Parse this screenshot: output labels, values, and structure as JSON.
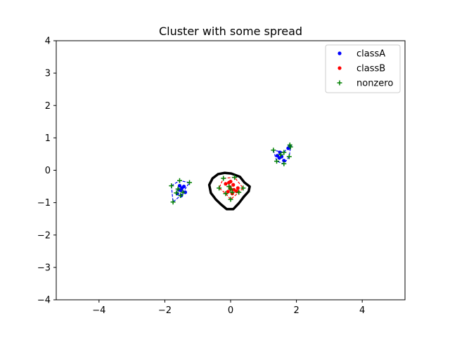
{
  "chart_data": {
    "type": "scatter",
    "title": "Cluster with some spread",
    "xlabel": "",
    "ylabel": "",
    "xlim": [
      -5.3,
      5.3
    ],
    "ylim": [
      -4,
      4
    ],
    "xticks": [
      -4,
      -2,
      0,
      2,
      4
    ],
    "yticks": [
      -4,
      -3,
      -2,
      -1,
      0,
      1,
      2,
      3,
      4
    ],
    "grid": false,
    "legend_position": "top-right",
    "series": [
      {
        "name": "classA",
        "color": "#0000ff",
        "marker": "dot",
        "points": [
          [
            -1.55,
            -0.48
          ],
          [
            -1.48,
            -0.55
          ],
          [
            -1.52,
            -0.62
          ],
          [
            -1.42,
            -0.5
          ],
          [
            -1.62,
            -0.72
          ],
          [
            -1.5,
            -0.78
          ],
          [
            -1.38,
            -0.68
          ],
          [
            -1.58,
            -0.6
          ],
          [
            1.42,
            0.45
          ],
          [
            1.55,
            0.42
          ],
          [
            1.5,
            0.55
          ],
          [
            1.75,
            0.68
          ],
          [
            1.8,
            0.75
          ],
          [
            1.78,
            0.7
          ],
          [
            1.62,
            0.3
          ],
          [
            1.48,
            0.38
          ]
        ]
      },
      {
        "name": "classB",
        "color": "#ff0000",
        "marker": "dot",
        "points": [
          [
            -0.15,
            -0.42
          ],
          [
            -0.05,
            -0.38
          ],
          [
            0.0,
            -0.35
          ],
          [
            0.08,
            -0.45
          ],
          [
            -0.02,
            -0.52
          ],
          [
            0.1,
            -0.6
          ],
          [
            0.18,
            -0.65
          ],
          [
            0.05,
            -0.72
          ],
          [
            -0.08,
            -0.66
          ],
          [
            0.0,
            -0.58
          ],
          [
            0.22,
            -0.55
          ]
        ]
      },
      {
        "name": "nonzero",
        "color": "#008000",
        "marker": "plus",
        "points": [
          [
            -1.8,
            -0.48
          ],
          [
            -1.55,
            -0.32
          ],
          [
            -1.25,
            -0.38
          ],
          [
            -1.45,
            -0.68
          ],
          [
            -1.52,
            -0.78
          ],
          [
            -1.75,
            -0.98
          ],
          [
            -1.6,
            -0.58
          ],
          [
            -1.65,
            -0.7
          ],
          [
            1.3,
            0.62
          ],
          [
            1.4,
            0.28
          ],
          [
            1.62,
            0.2
          ],
          [
            1.78,
            0.42
          ],
          [
            1.82,
            0.72
          ],
          [
            1.8,
            0.78
          ],
          [
            1.62,
            0.55
          ],
          [
            1.52,
            0.48
          ],
          [
            -0.22,
            -0.25
          ],
          [
            0.12,
            -0.22
          ],
          [
            -0.35,
            -0.55
          ],
          [
            -0.15,
            -0.72
          ],
          [
            0.0,
            -0.58
          ],
          [
            0.05,
            -0.68
          ],
          [
            0.38,
            -0.55
          ],
          [
            0.0,
            -0.9
          ],
          [
            0.25,
            -0.68
          ],
          [
            -0.05,
            -0.5
          ]
        ]
      }
    ],
    "hulls": [
      {
        "color": "#0000ff",
        "points": [
          [
            -1.8,
            -0.48
          ],
          [
            -1.55,
            -0.32
          ],
          [
            -1.25,
            -0.38
          ],
          [
            -1.45,
            -0.68
          ],
          [
            -1.52,
            -0.78
          ],
          [
            -1.75,
            -0.98
          ]
        ]
      },
      {
        "color": "#0000ff",
        "points": [
          [
            1.3,
            0.62
          ],
          [
            1.4,
            0.28
          ],
          [
            1.62,
            0.2
          ],
          [
            1.78,
            0.42
          ],
          [
            1.82,
            0.72
          ],
          [
            1.8,
            0.78
          ],
          [
            1.62,
            0.55
          ]
        ]
      },
      {
        "color": "#ff0000",
        "points": [
          [
            -0.22,
            -0.25
          ],
          [
            0.12,
            -0.22
          ],
          [
            0.38,
            -0.55
          ],
          [
            0.25,
            -0.68
          ],
          [
            0.0,
            -0.9
          ],
          [
            -0.15,
            -0.72
          ],
          [
            -0.35,
            -0.55
          ]
        ]
      }
    ],
    "circle": {
      "color": "#000000",
      "points": [
        [
          0.02,
          -0.1
        ],
        [
          0.28,
          -0.2
        ],
        [
          0.42,
          -0.38
        ],
        [
          0.58,
          -0.5
        ],
        [
          0.55,
          -0.65
        ],
        [
          0.4,
          -0.82
        ],
        [
          0.25,
          -1.02
        ],
        [
          0.08,
          -1.2
        ],
        [
          -0.12,
          -1.2
        ],
        [
          -0.3,
          -1.05
        ],
        [
          -0.45,
          -0.9
        ],
        [
          -0.6,
          -0.7
        ],
        [
          -0.65,
          -0.45
        ],
        [
          -0.55,
          -0.25
        ],
        [
          -0.38,
          -0.12
        ],
        [
          -0.18,
          -0.08
        ]
      ]
    }
  }
}
